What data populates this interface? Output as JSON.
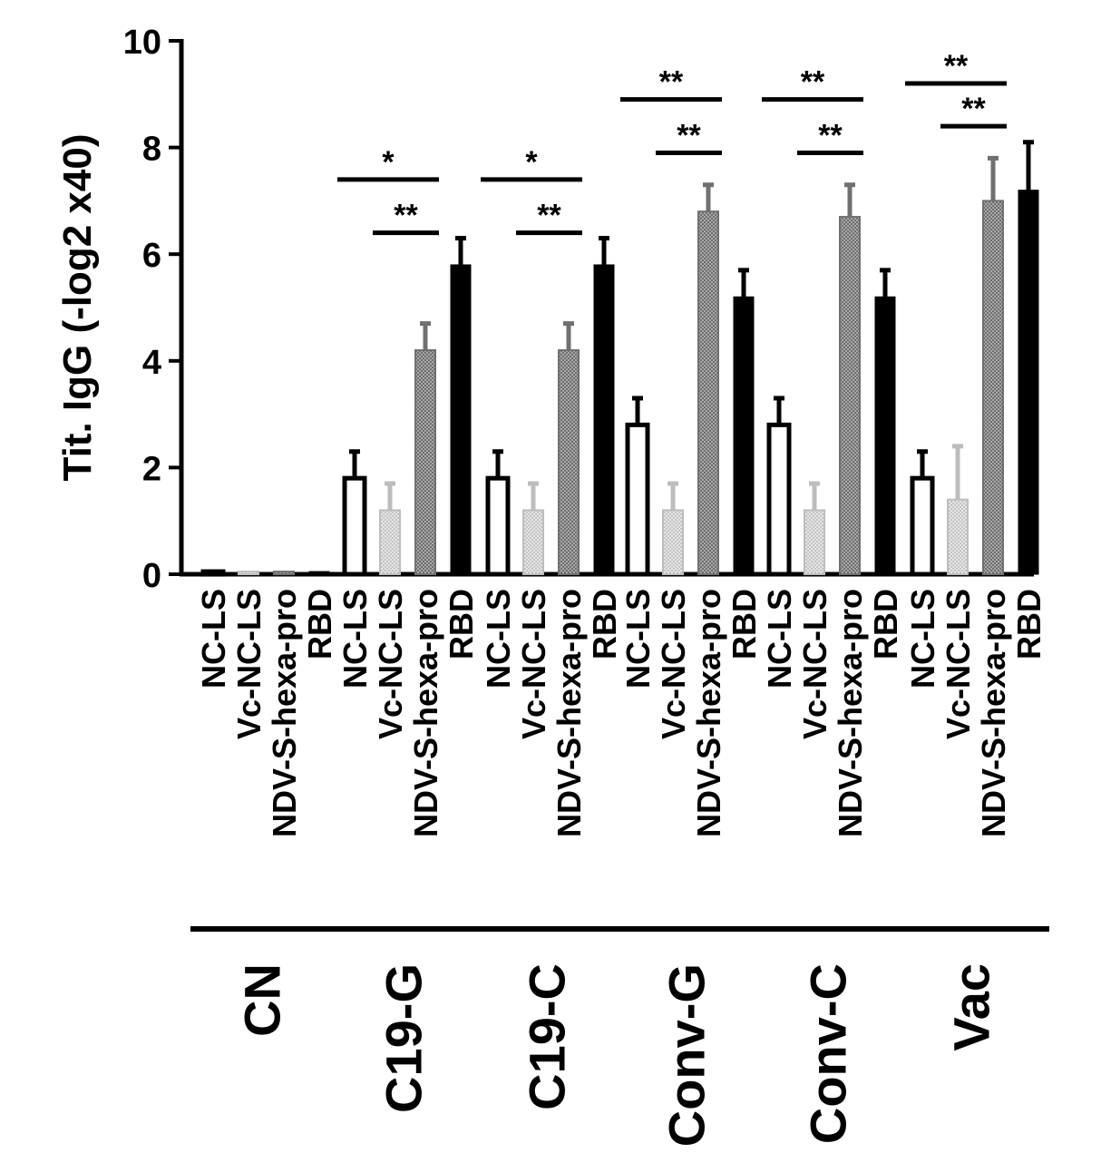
{
  "chart_data": {
    "type": "bar",
    "title": "",
    "xlabel": "",
    "ylabel": "Tit. IgG (-log2 x40)",
    "ylim": [
      0,
      10
    ],
    "yticks": [
      0,
      2,
      4,
      6,
      8,
      10
    ],
    "categories": [
      "NC-LS",
      "Vc-NC-LS",
      "NDV-S-hexa-pro",
      "RBD"
    ],
    "groups": [
      {
        "name": "CN",
        "values": [
          0.05,
          0.05,
          0.05,
          0.05
        ],
        "errors": [
          0,
          0,
          0,
          0
        ]
      },
      {
        "name": "C19-G",
        "values": [
          1.8,
          1.2,
          4.2,
          5.8
        ],
        "errors": [
          0.5,
          0.5,
          0.5,
          0.5
        ]
      },
      {
        "name": "C19-C",
        "values": [
          1.8,
          1.2,
          4.2,
          5.8
        ],
        "errors": [
          0.5,
          0.5,
          0.5,
          0.5
        ]
      },
      {
        "name": "Conv-G",
        "values": [
          2.8,
          1.2,
          6.8,
          5.2
        ],
        "errors": [
          0.5,
          0.5,
          0.5,
          0.5
        ]
      },
      {
        "name": "Conv-C",
        "values": [
          2.8,
          1.2,
          6.7,
          5.2
        ],
        "errors": [
          0.5,
          0.5,
          0.6,
          0.5
        ]
      },
      {
        "name": "Vac",
        "values": [
          1.8,
          1.4,
          7.0,
          7.2
        ],
        "errors": [
          0.5,
          1.0,
          0.8,
          0.9
        ]
      }
    ],
    "significance": [
      {
        "group": "C19-G",
        "from": 0,
        "to": 2,
        "label": "*",
        "y": 7.4
      },
      {
        "group": "C19-G",
        "from": 1,
        "to": 2,
        "label": "**",
        "y": 6.4
      },
      {
        "group": "C19-C",
        "from": 0,
        "to": 2,
        "label": "*",
        "y": 7.4
      },
      {
        "group": "C19-C",
        "from": 1,
        "to": 2,
        "label": "**",
        "y": 6.4
      },
      {
        "group": "Conv-G",
        "from": 0,
        "to": 2,
        "label": "**",
        "y": 8.9
      },
      {
        "group": "Conv-G",
        "from": 1,
        "to": 2,
        "label": "**",
        "y": 7.9
      },
      {
        "group": "Conv-C",
        "from": 0,
        "to": 2,
        "label": "**",
        "y": 8.9
      },
      {
        "group": "Conv-C",
        "from": 1,
        "to": 2,
        "label": "**",
        "y": 7.9
      },
      {
        "group": "Vac",
        "from": 0,
        "to": 2,
        "label": "**",
        "y": 9.2
      },
      {
        "group": "Vac",
        "from": 1,
        "to": 2,
        "label": "**",
        "y": 8.4
      }
    ],
    "series_styles": [
      {
        "category": "NC-LS",
        "fill": "#ffffff",
        "stroke": "#000000"
      },
      {
        "category": "Vc-NC-LS",
        "fill": "#d9d9d9",
        "stroke": "#bdbdbd"
      },
      {
        "category": "NDV-S-hexa-pro",
        "fill": "#8c8c8c",
        "stroke": "#707070"
      },
      {
        "category": "RBD",
        "fill": "#000000",
        "stroke": "#000000"
      }
    ]
  }
}
